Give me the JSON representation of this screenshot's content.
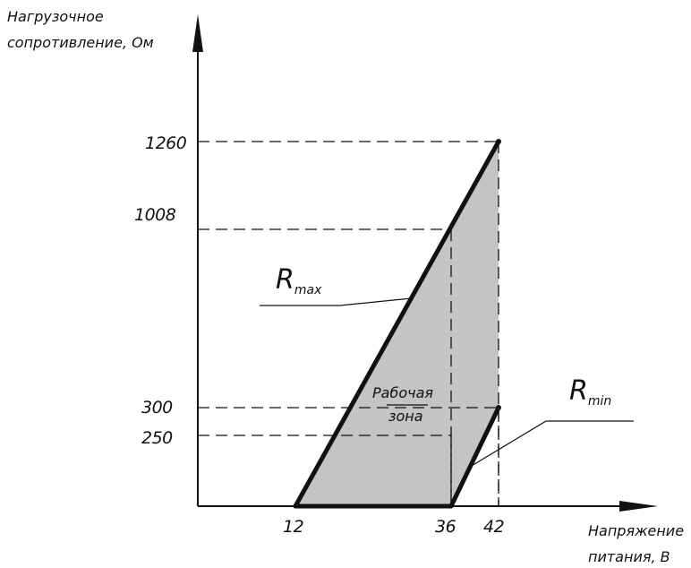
{
  "chart_data": {
    "type": "area",
    "ylabel_lines": [
      "Нагрузочное",
      "сопротивление, Ом"
    ],
    "xlabel_lines": [
      "Напряжение",
      "питания, В"
    ],
    "x_ticks": [
      "12",
      "36",
      "42"
    ],
    "y_ticks": [
      "1260",
      "1008",
      "300",
      "250"
    ],
    "series": [
      {
        "key": "rmax",
        "label_main": "R",
        "label_sub": "max",
        "points": [
          {
            "x": 12,
            "y": 0
          },
          {
            "x": 42,
            "y": 1260
          }
        ]
      },
      {
        "key": "rmin",
        "label_main": "R",
        "label_sub": "min",
        "points": [
          {
            "x": 36,
            "y": 0
          },
          {
            "x": 42,
            "y": 300
          }
        ]
      }
    ],
    "region": {
      "label_lines": [
        "Рабочая",
        "зона"
      ],
      "fill": "#c4c4c4",
      "vertices": [
        {
          "x": 12,
          "y": 0
        },
        {
          "x": 36,
          "y": 0
        },
        {
          "x": 42,
          "y": 300
        },
        {
          "x": 42,
          "y": 1260
        }
      ]
    },
    "guides": [
      {
        "x": 42,
        "y": 1260
      },
      {
        "x": 36,
        "y": 1008
      },
      {
        "x": 42,
        "y": 300
      },
      {
        "x": 36,
        "y": 250
      }
    ],
    "axis_color": "#111111"
  }
}
